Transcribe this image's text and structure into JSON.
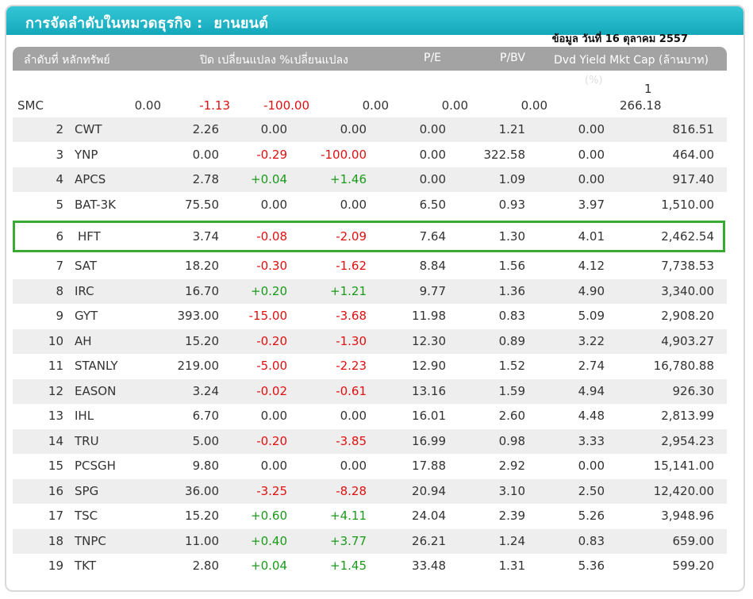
{
  "header": {
    "title": "การจัดลำดับในหมวดธุรกิจ :",
    "sector": "ยานยนต์"
  },
  "as_of": "ข้อมูล วันที่ 16 ตุลาคม 2557",
  "columns": {
    "rank": "ลำดับที่",
    "symbol": "หลักทรัพย์",
    "close_change": "ปิด เปลี่ยนแปลง %เปลี่ยนแปลง",
    "pe": "P/E",
    "pbv": "P/BV",
    "dvd_mkt": "Dvd Yield Mkt Cap (ล้านบาท)",
    "dvd_unit": "(%)"
  },
  "first_row": {
    "symbol": "SMC",
    "close": "0.00",
    "change": "-1.13",
    "pct": "-100.00",
    "pe": "0.00",
    "pbv": "0.00",
    "dvd": "0.00",
    "mkt_line1": "1",
    "mkt_line2": "266.18"
  },
  "rows": [
    {
      "rank": "2",
      "symbol": "CWT",
      "close": "2.26",
      "change": "0.00",
      "pct": "0.00",
      "pe": "0.00",
      "pbv": "1.21",
      "dvd": "0.00",
      "mkt": "816.51",
      "dir": "flat"
    },
    {
      "rank": "3",
      "symbol": "YNP",
      "close": "0.00",
      "change": "-0.29",
      "pct": "-100.00",
      "pe": "0.00",
      "pbv": "322.58",
      "dvd": "0.00",
      "mkt": "464.00",
      "dir": "down"
    },
    {
      "rank": "4",
      "symbol": "APCS",
      "close": "2.78",
      "change": "+0.04",
      "pct": "+1.46",
      "pe": "0.00",
      "pbv": "1.09",
      "dvd": "0.00",
      "mkt": "917.40",
      "dir": "up"
    },
    {
      "rank": "5",
      "symbol": "BAT-3K",
      "close": "75.50",
      "change": "0.00",
      "pct": "0.00",
      "pe": "6.50",
      "pbv": "0.93",
      "dvd": "3.97",
      "mkt": "1,510.00",
      "dir": "flat"
    },
    {
      "rank": "6",
      "symbol": "HFT",
      "close": "3.74",
      "change": "-0.08",
      "pct": "-2.09",
      "pe": "7.64",
      "pbv": "1.30",
      "dvd": "4.01",
      "mkt": "2,462.54",
      "dir": "down"
    },
    {
      "rank": "7",
      "symbol": "SAT",
      "close": "18.20",
      "change": "-0.30",
      "pct": "-1.62",
      "pe": "8.84",
      "pbv": "1.56",
      "dvd": "4.12",
      "mkt": "7,738.53",
      "dir": "down"
    },
    {
      "rank": "8",
      "symbol": "IRC",
      "close": "16.70",
      "change": "+0.20",
      "pct": "+1.21",
      "pe": "9.77",
      "pbv": "1.36",
      "dvd": "4.90",
      "mkt": "3,340.00",
      "dir": "up"
    },
    {
      "rank": "9",
      "symbol": "GYT",
      "close": "393.00",
      "change": "-15.00",
      "pct": "-3.68",
      "pe": "11.98",
      "pbv": "0.83",
      "dvd": "5.09",
      "mkt": "2,908.20",
      "dir": "down"
    },
    {
      "rank": "10",
      "symbol": "AH",
      "close": "15.20",
      "change": "-0.20",
      "pct": "-1.30",
      "pe": "12.30",
      "pbv": "0.89",
      "dvd": "3.22",
      "mkt": "4,903.27",
      "dir": "down"
    },
    {
      "rank": "11",
      "symbol": "STANLY",
      "close": "219.00",
      "change": "-5.00",
      "pct": "-2.23",
      "pe": "12.90",
      "pbv": "1.52",
      "dvd": "2.74",
      "mkt": "16,780.88",
      "dir": "down"
    },
    {
      "rank": "12",
      "symbol": "EASON",
      "close": "3.24",
      "change": "-0.02",
      "pct": "-0.61",
      "pe": "13.16",
      "pbv": "1.59",
      "dvd": "4.94",
      "mkt": "926.30",
      "dir": "down"
    },
    {
      "rank": "13",
      "symbol": "IHL",
      "close": "6.70",
      "change": "0.00",
      "pct": "0.00",
      "pe": "16.01",
      "pbv": "2.60",
      "dvd": "4.48",
      "mkt": "2,813.99",
      "dir": "flat"
    },
    {
      "rank": "14",
      "symbol": "TRU",
      "close": "5.00",
      "change": "-0.20",
      "pct": "-3.85",
      "pe": "16.99",
      "pbv": "0.98",
      "dvd": "3.33",
      "mkt": "2,954.23",
      "dir": "down"
    },
    {
      "rank": "15",
      "symbol": "PCSGH",
      "close": "9.80",
      "change": "0.00",
      "pct": "0.00",
      "pe": "17.88",
      "pbv": "2.92",
      "dvd": "0.00",
      "mkt": "15,141.00",
      "dir": "flat"
    },
    {
      "rank": "16",
      "symbol": "SPG",
      "close": "36.00",
      "change": "-3.25",
      "pct": "-8.28",
      "pe": "20.94",
      "pbv": "3.10",
      "dvd": "2.50",
      "mkt": "12,420.00",
      "dir": "down"
    },
    {
      "rank": "17",
      "symbol": "TSC",
      "close": "15.20",
      "change": "+0.60",
      "pct": "+4.11",
      "pe": "24.04",
      "pbv": "2.39",
      "dvd": "5.26",
      "mkt": "3,948.96",
      "dir": "up"
    },
    {
      "rank": "18",
      "symbol": "TNPC",
      "close": "11.00",
      "change": "+0.40",
      "pct": "+3.77",
      "pe": "26.21",
      "pbv": "1.24",
      "dvd": "0.83",
      "mkt": "659.00",
      "dir": "up"
    },
    {
      "rank": "19",
      "symbol": "TKT",
      "close": "2.80",
      "change": "+0.04",
      "pct": "+1.45",
      "pe": "33.48",
      "pbv": "1.31",
      "dvd": "5.36",
      "mkt": "599.20",
      "dir": "up"
    }
  ],
  "highlighted_symbol": "HFT",
  "colors": {
    "up": "#1a9a1a",
    "down": "#e01010",
    "header_bg": "#14a8bb",
    "highlight": "#3aaa35"
  }
}
